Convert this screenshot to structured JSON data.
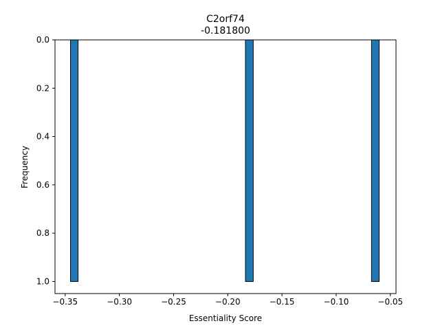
{
  "chart_data": {
    "type": "bar",
    "title": "C2orf74",
    "subtitle": "-0.181800",
    "xlabel": "Essentiality Score",
    "ylabel": "Frequency",
    "xlim": [
      -0.3594,
      -0.0448
    ],
    "ylim": [
      0.0,
      1.05
    ],
    "y_inverted": true,
    "x_ticks": [
      -0.35,
      -0.3,
      -0.25,
      -0.2,
      -0.15,
      -0.1,
      -0.05
    ],
    "x_tick_labels": [
      "−0.35",
      "−0.30",
      "−0.25",
      "−0.20",
      "−0.15",
      "−0.10",
      "−0.05"
    ],
    "y_ticks": [
      0.0,
      0.2,
      0.4,
      0.6,
      0.8,
      1.0
    ],
    "y_tick_labels": [
      "0.0",
      "0.2",
      "0.4",
      "0.6",
      "0.8",
      "1.0"
    ],
    "bars": [
      {
        "x_start": -0.3451,
        "x_end": -0.3381,
        "value": 1
      },
      {
        "x_start": -0.1837,
        "x_end": -0.1765,
        "value": 1
      },
      {
        "x_start": -0.0674,
        "x_end": -0.0603,
        "value": 1
      }
    ],
    "bar_color": "#1f77b4",
    "edge_color": "#000000",
    "grid": false,
    "legend": "none"
  }
}
